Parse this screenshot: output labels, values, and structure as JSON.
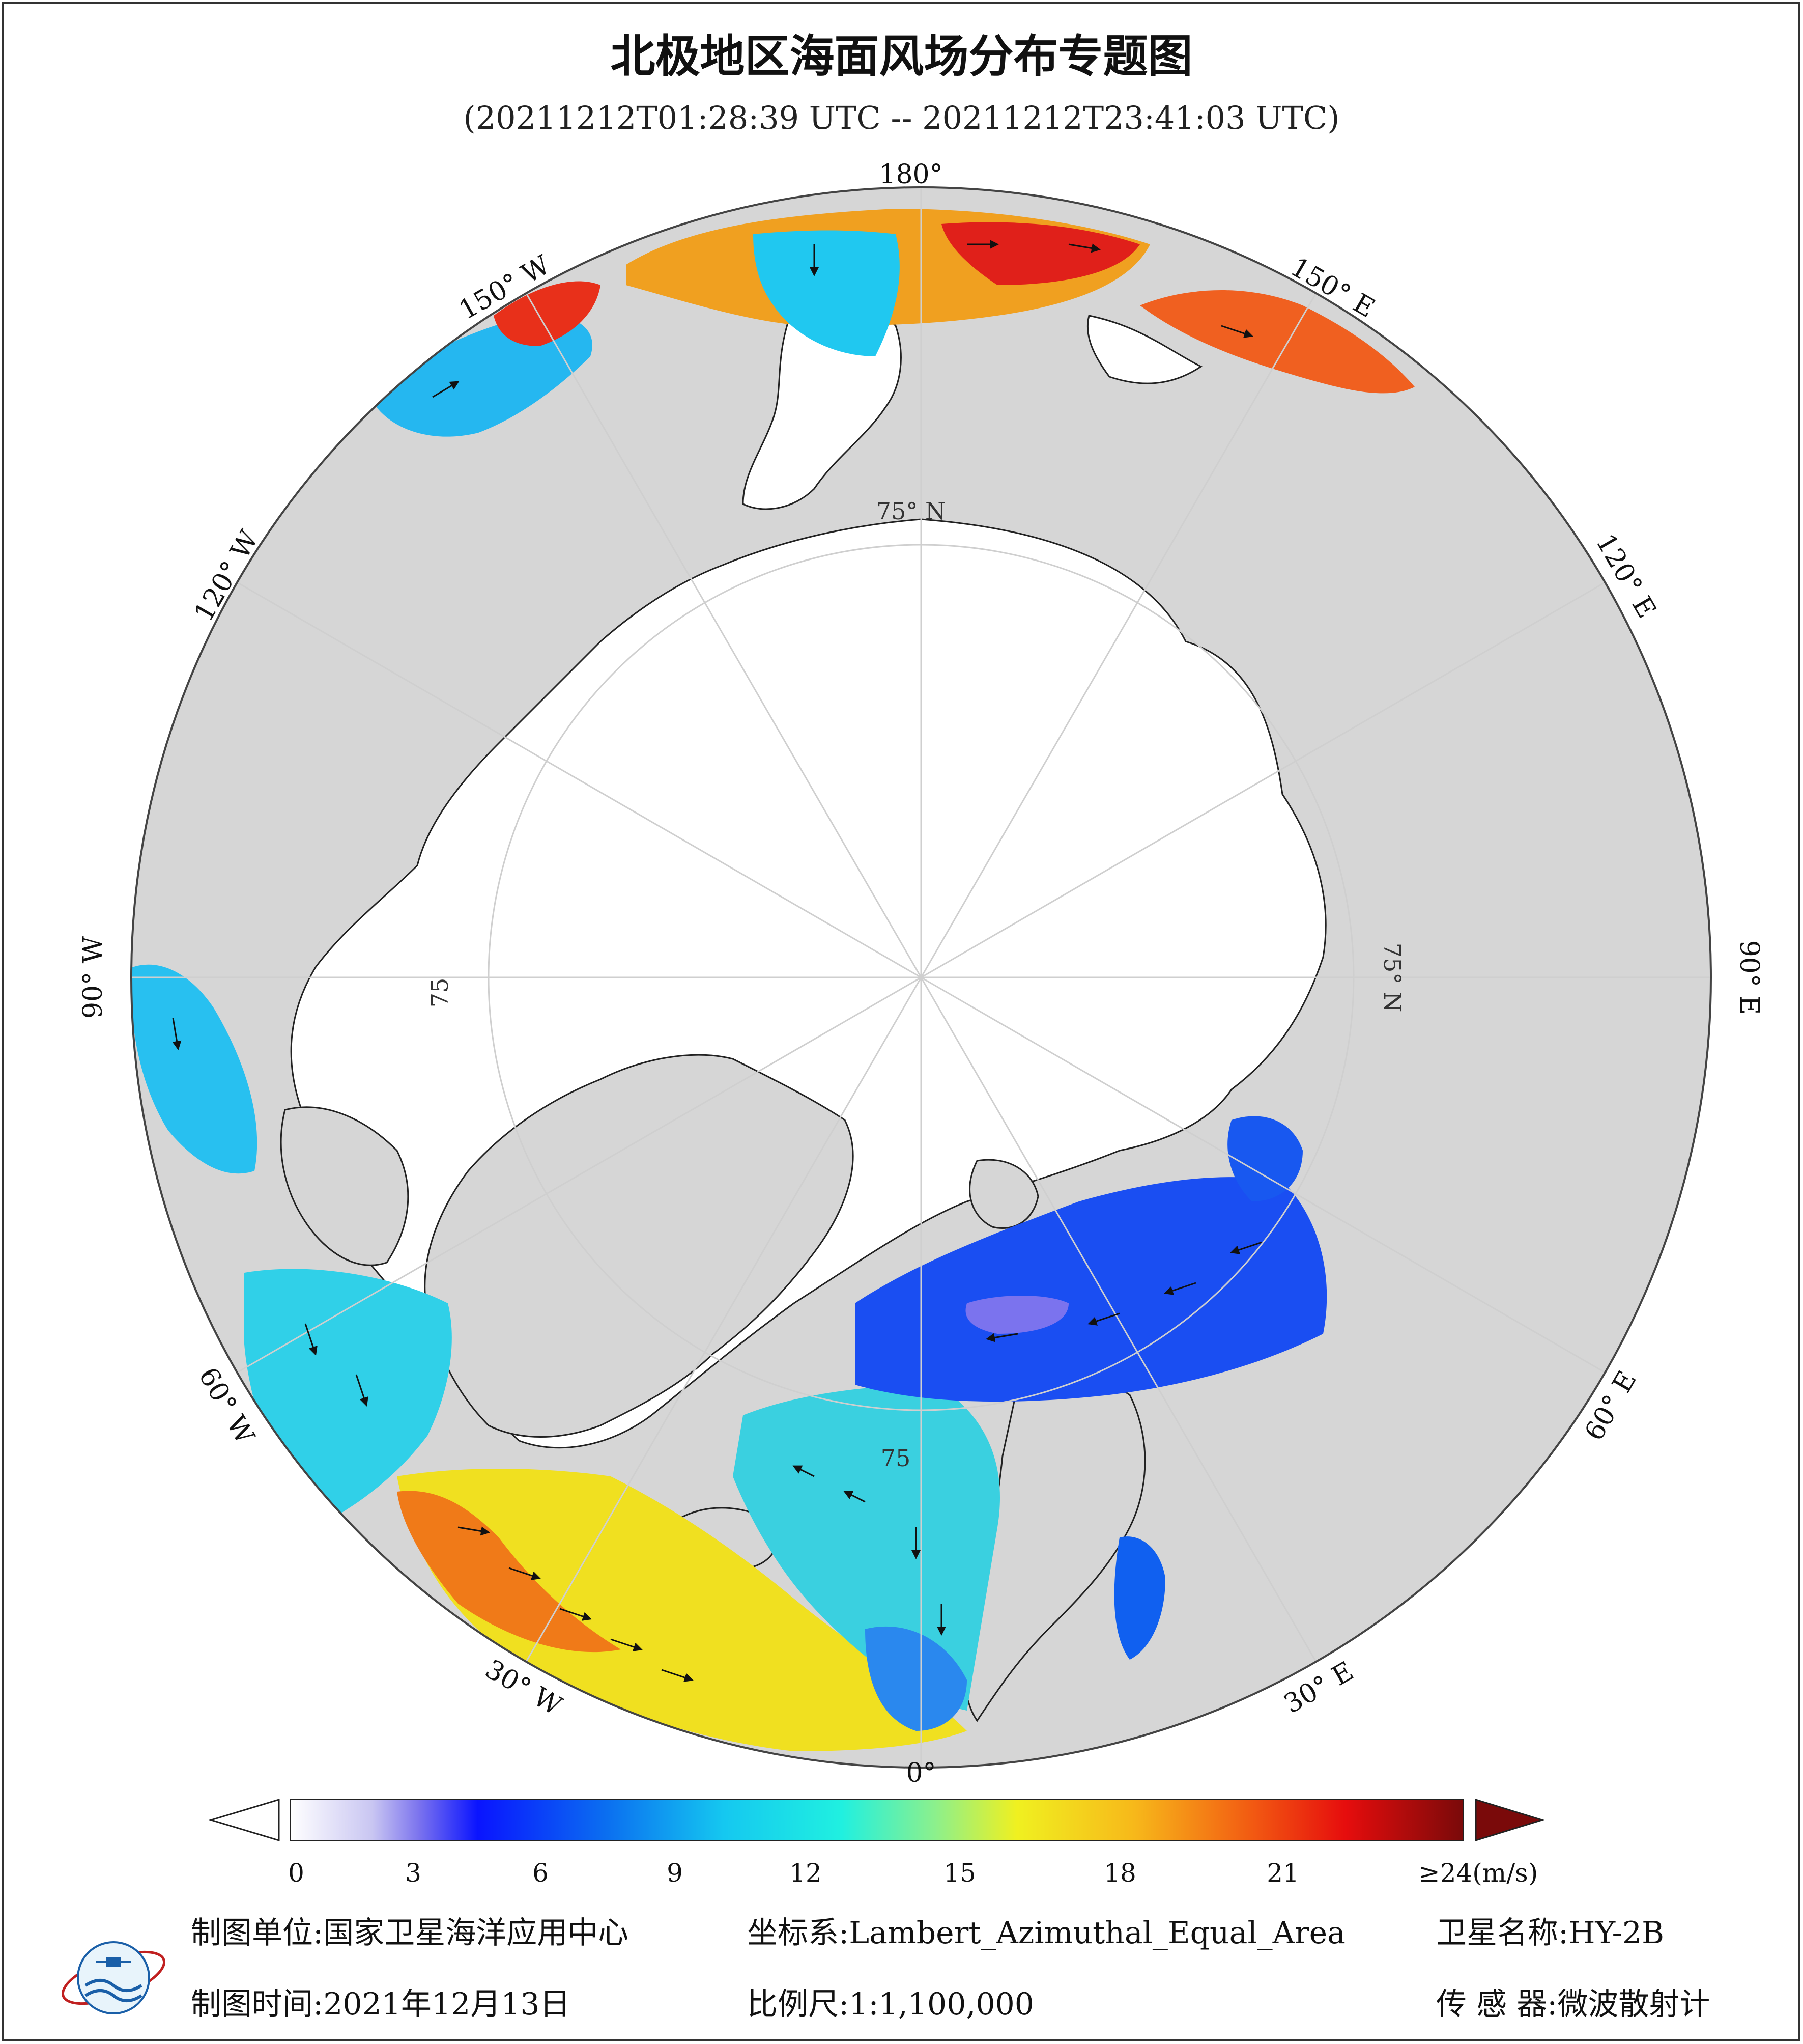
{
  "title": "北极地区海面风场分布专题图",
  "subtitle": "(20211212T01:28:39 UTC -- 20211212T23:41:03 UTC)",
  "map": {
    "projection": "polar azimuthal, north pole centered",
    "meridian_labels": {
      "m180": "180°",
      "m150w": "150° W",
      "m120w": "120° W",
      "m90w": "90° W",
      "m60w": "60° W",
      "m30w": "30° W",
      "m0": "0°",
      "m30e": "30° E",
      "m60e": "60° E",
      "m90e": "90° E",
      "m120e": "120° E",
      "m150e": "150° E"
    },
    "parallel_labels": {
      "p75_top": "75° N",
      "p75_right": "75° N",
      "p75_left": "75",
      "p75_bottom": "75"
    },
    "colors": {
      "ocean_outer": "#d6d6d6",
      "land_white": "#ffffff",
      "coast": "#222222",
      "grid": "#cfcfcf"
    }
  },
  "colorbar": {
    "unit_label": "≥24(m/s)",
    "ticks": [
      "0",
      "3",
      "6",
      "9",
      "12",
      "15",
      "18",
      "21"
    ],
    "stops": [
      "#ffffff",
      "#c9c6f2",
      "#7b73ee",
      "#0a14ff",
      "#0b6ff0",
      "#15c8f0",
      "#20f0e0",
      "#8cf08c",
      "#f0f020",
      "#f7b81a",
      "#f25a12",
      "#e60d0d",
      "#7a0a0a"
    ],
    "under_color": "#ffffff",
    "over_color": "#7a0a0a"
  },
  "footer": {
    "unit_label": "制图单位:",
    "unit_value": "国家卫星海洋应用中心",
    "coord_label": "坐标系:",
    "coord_value": "Lambert_Azimuthal_Equal_Area",
    "sat_label": "卫星名称:",
    "sat_value": "HY-2B",
    "time_label": "制图时间:",
    "time_value": "2021年12月13日",
    "scale_label": "比例尺:",
    "scale_value": "1:1,100,000",
    "sensor_label": "传 感 器:",
    "sensor_value": "微波散射计"
  }
}
